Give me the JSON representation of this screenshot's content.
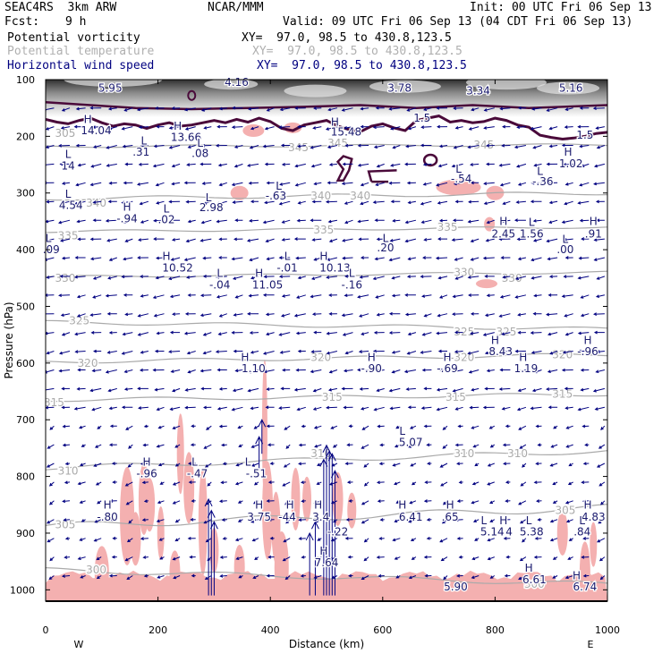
{
  "header": {
    "model": "SEAC4RS  3km ARW",
    "org": "NCAR/MMM",
    "init": "Init: 00 UTC Fri 06 Sep 13",
    "fcst_label": "Fcst:",
    "fcst_value": "9 h",
    "valid": "Valid: 09 UTC Fri 06 Sep 13 (04 CDT Fri 06 Sep 13)"
  },
  "fields": [
    {
      "name": "Potential vorticity",
      "xy": "XY=  97.0, 98.5 to 430.8,123.5",
      "color": "#000000"
    },
    {
      "name": "Potential temperature",
      "xy": "XY=  97.0, 98.5 to 430.8,123.5",
      "color": "#b0b0b0"
    },
    {
      "name": "Horizontal wind speed",
      "xy": "XY=  97.0, 98.5 to 430.8,123.5",
      "color": "#000080"
    }
  ],
  "colors": {
    "pv": "#4a0a3a",
    "theta": "#aaaaaa",
    "wind": "#000080",
    "shade": "#f4b0b0"
  },
  "chart_data": {
    "type": "cross-section",
    "xlabel": "Distance (km)",
    "ylabel": "Pressure (hPa)",
    "xlim": [
      0,
      1000
    ],
    "ylim": [
      1020,
      100
    ],
    "xticks": [
      "0",
      "200",
      "400",
      "600",
      "800",
      "1000"
    ],
    "yticks": [
      "100",
      "200",
      "300",
      "400",
      "500",
      "600",
      "700",
      "800",
      "900",
      "1000"
    ],
    "x_end_labels": {
      "left": "W",
      "right": "E"
    },
    "theta_labels": [
      {
        "t": "305",
        "x": 35,
        "p": 195
      },
      {
        "t": "345",
        "x": 450,
        "p": 220
      },
      {
        "t": "345",
        "x": 780,
        "p": 215
      },
      {
        "t": "345",
        "x": 520,
        "p": 212
      },
      {
        "t": "340",
        "x": 90,
        "p": 318
      },
      {
        "t": "340",
        "x": 490,
        "p": 305
      },
      {
        "t": "340",
        "x": 560,
        "p": 305
      },
      {
        "t": "335",
        "x": 40,
        "p": 375
      },
      {
        "t": "335",
        "x": 495,
        "p": 365
      },
      {
        "t": "335",
        "x": 715,
        "p": 360
      },
      {
        "t": "330",
        "x": 35,
        "p": 450
      },
      {
        "t": "330",
        "x": 745,
        "p": 440
      },
      {
        "t": "330",
        "x": 830,
        "p": 450
      },
      {
        "t": "325",
        "x": 60,
        "p": 525
      },
      {
        "t": "325",
        "x": 745,
        "p": 545
      },
      {
        "t": "325",
        "x": 820,
        "p": 545
      },
      {
        "t": "320",
        "x": 75,
        "p": 600
      },
      {
        "t": "320",
        "x": 490,
        "p": 590
      },
      {
        "t": "320",
        "x": 745,
        "p": 590
      },
      {
        "t": "320",
        "x": 920,
        "p": 585
      },
      {
        "t": "315",
        "x": 15,
        "p": 670
      },
      {
        "t": "315",
        "x": 510,
        "p": 660
      },
      {
        "t": "315",
        "x": 730,
        "p": 660
      },
      {
        "t": "315",
        "x": 920,
        "p": 655
      },
      {
        "t": "310",
        "x": 40,
        "p": 790
      },
      {
        "t": "310",
        "x": 490,
        "p": 760
      },
      {
        "t": "310",
        "x": 745,
        "p": 760
      },
      {
        "t": "310",
        "x": 840,
        "p": 760
      },
      {
        "t": "305",
        "x": 35,
        "p": 885
      },
      {
        "t": "305",
        "x": 925,
        "p": 860
      },
      {
        "t": "300",
        "x": 90,
        "p": 965
      },
      {
        "t": "300",
        "x": 870,
        "p": 990
      }
    ],
    "extrema": [
      {
        "t": "5.95",
        "x": 115,
        "p": 115
      },
      {
        "t": "4.16",
        "x": 340,
        "p": 105
      },
      {
        "t": "3.78",
        "x": 630,
        "p": 115
      },
      {
        "t": "3.34",
        "x": 770,
        "p": 120
      },
      {
        "t": "5.16",
        "x": 935,
        "p": 115
      },
      {
        "t": "H",
        "x": 75,
        "p": 170
      },
      {
        "t": "14.04",
        "x": 90,
        "p": 190
      },
      {
        "t": "H",
        "x": 235,
        "p": 182
      },
      {
        "t": "13.66",
        "x": 250,
        "p": 202
      },
      {
        "t": "H",
        "x": 515,
        "p": 175
      },
      {
        "t": "15.48",
        "x": 535,
        "p": 192
      },
      {
        "t": "1.5",
        "x": 670,
        "p": 168
      },
      {
        "t": "1.5",
        "x": 960,
        "p": 198
      },
      {
        "t": "L",
        "x": 175,
        "p": 208
      },
      {
        "t": ".31",
        "x": 170,
        "p": 228
      },
      {
        "t": "L",
        "x": 275,
        "p": 212
      },
      {
        "t": ".08",
        "x": 275,
        "p": 230
      },
      {
        "t": "L",
        "x": 40,
        "p": 232
      },
      {
        "t": "14",
        "x": 40,
        "p": 252
      },
      {
        "t": "H",
        "x": 930,
        "p": 228
      },
      {
        "t": "1.02",
        "x": 935,
        "p": 248
      },
      {
        "t": "L",
        "x": 735,
        "p": 258
      },
      {
        "t": "-.54",
        "x": 740,
        "p": 275
      },
      {
        "t": "L",
        "x": 880,
        "p": 262
      },
      {
        "t": "-.36",
        "x": 885,
        "p": 280
      },
      {
        "t": "L",
        "x": 415,
        "p": 288
      },
      {
        "t": "-.63",
        "x": 410,
        "p": 305
      },
      {
        "t": "L",
        "x": 40,
        "p": 302
      },
      {
        "t": "4.54",
        "x": 45,
        "p": 322
      },
      {
        "t": "L",
        "x": 290,
        "p": 308
      },
      {
        "t": "2.98",
        "x": 295,
        "p": 326
      },
      {
        "t": "H",
        "x": 145,
        "p": 325
      },
      {
        "t": "-.94",
        "x": 145,
        "p": 345
      },
      {
        "t": "L",
        "x": 215,
        "p": 328
      },
      {
        "t": ".02",
        "x": 215,
        "p": 347
      },
      {
        "t": "H",
        "x": 815,
        "p": 350
      },
      {
        "t": "2.45",
        "x": 815,
        "p": 372
      },
      {
        "t": "L",
        "x": 865,
        "p": 352
      },
      {
        "t": "1.56",
        "x": 865,
        "p": 372
      },
      {
        "t": "H",
        "x": 975,
        "p": 350
      },
      {
        "t": ".91",
        "x": 975,
        "p": 372
      },
      {
        "t": "L",
        "x": 605,
        "p": 380
      },
      {
        "t": ".20",
        "x": 605,
        "p": 397
      },
      {
        "t": "L",
        "x": 925,
        "p": 382
      },
      {
        "t": ".00",
        "x": 925,
        "p": 400
      },
      {
        "t": "L",
        "x": 5,
        "p": 380
      },
      {
        "t": ".09",
        "x": 10,
        "p": 400
      },
      {
        "t": "H",
        "x": 215,
        "p": 412
      },
      {
        "t": "10.52",
        "x": 235,
        "p": 432
      },
      {
        "t": "L",
        "x": 430,
        "p": 412
      },
      {
        "t": "H",
        "x": 495,
        "p": 412
      },
      {
        "t": "10.13",
        "x": 515,
        "p": 432
      },
      {
        "t": "-.01",
        "x": 430,
        "p": 432
      },
      {
        "t": "L",
        "x": 310,
        "p": 442
      },
      {
        "t": "-.04",
        "x": 310,
        "p": 462
      },
      {
        "t": "H",
        "x": 380,
        "p": 442
      },
      {
        "t": "11.05",
        "x": 395,
        "p": 462
      },
      {
        "t": "L",
        "x": 545,
        "p": 442
      },
      {
        "t": "-.16",
        "x": 545,
        "p": 462
      },
      {
        "t": "H",
        "x": 800,
        "p": 560
      },
      {
        "t": "8.43",
        "x": 810,
        "p": 580
      },
      {
        "t": "H",
        "x": 965,
        "p": 560
      },
      {
        "t": "-.96",
        "x": 965,
        "p": 580
      },
      {
        "t": "H",
        "x": 355,
        "p": 590
      },
      {
        "t": "1.10",
        "x": 370,
        "p": 610
      },
      {
        "t": "H",
        "x": 580,
        "p": 590
      },
      {
        "t": "-.90",
        "x": 580,
        "p": 610
      },
      {
        "t": "H",
        "x": 715,
        "p": 590
      },
      {
        "t": "-.69",
        "x": 715,
        "p": 610
      },
      {
        "t": "H",
        "x": 850,
        "p": 590
      },
      {
        "t": "1.19",
        "x": 855,
        "p": 610
      },
      {
        "t": "L",
        "x": 635,
        "p": 720
      },
      {
        "t": "5.07",
        "x": 650,
        "p": 740
      },
      {
        "t": "H",
        "x": 180,
        "p": 775
      },
      {
        "t": "-.96",
        "x": 180,
        "p": 795
      },
      {
        "t": "L",
        "x": 265,
        "p": 775
      },
      {
        "t": "-.47",
        "x": 270,
        "p": 795
      },
      {
        "t": "L",
        "x": 360,
        "p": 775
      },
      {
        "t": "-.51",
        "x": 375,
        "p": 795
      },
      {
        "t": "H",
        "x": 110,
        "p": 850
      },
      {
        "t": "-.80",
        "x": 110,
        "p": 872
      },
      {
        "t": "H",
        "x": 380,
        "p": 850
      },
      {
        "t": "3.75",
        "x": 380,
        "p": 872
      },
      {
        "t": "H",
        "x": 435,
        "p": 850
      },
      {
        "t": "-44",
        "x": 430,
        "p": 872
      },
      {
        "t": "H",
        "x": 485,
        "p": 850
      },
      {
        "t": "3.4",
        "x": 490,
        "p": 872
      },
      {
        "t": "H",
        "x": 635,
        "p": 850
      },
      {
        "t": "6.41",
        "x": 650,
        "p": 872
      },
      {
        "t": "H",
        "x": 720,
        "p": 850
      },
      {
        "t": ".65",
        "x": 720,
        "p": 872
      },
      {
        "t": "H",
        "x": 965,
        "p": 850
      },
      {
        "t": "4.83",
        "x": 975,
        "p": 872
      },
      {
        "t": "L",
        "x": 780,
        "p": 878
      },
      {
        "t": "H",
        "x": 815,
        "p": 878
      },
      {
        "t": "L",
        "x": 860,
        "p": 878
      },
      {
        "t": "5.14",
        "x": 795,
        "p": 898
      },
      {
        "t": "4",
        "x": 825,
        "p": 898
      },
      {
        "t": "5.38",
        "x": 865,
        "p": 898
      },
      {
        "t": "L",
        "x": 955,
        "p": 878
      },
      {
        "t": ".84",
        "x": 955,
        "p": 898
      },
      {
        "t": "-.22",
        "x": 520,
        "p": 898
      },
      {
        "t": "H",
        "x": 495,
        "p": 932
      },
      {
        "t": "7.64",
        "x": 500,
        "p": 952
      },
      {
        "t": "H",
        "x": 860,
        "p": 962
      },
      {
        "t": "6.61",
        "x": 870,
        "p": 982
      },
      {
        "t": "H",
        "x": 945,
        "p": 975
      },
      {
        "t": "6.74",
        "x": 960,
        "p": 995
      },
      {
        "t": "5.90",
        "x": 730,
        "p": 995
      }
    ]
  }
}
